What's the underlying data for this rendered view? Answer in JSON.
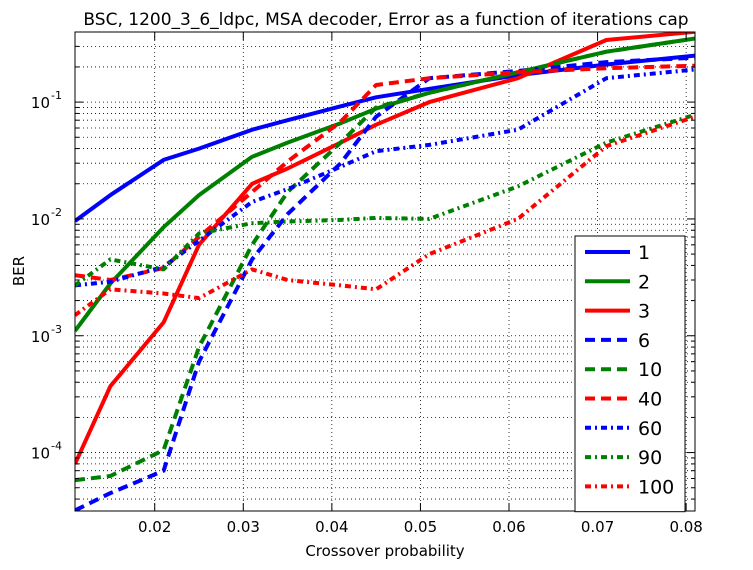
{
  "chart_data": {
    "type": "line",
    "title": "BSC, 1200_3_6_ldpc, MSA decoder, Error as a function of iterations cap",
    "xlabel": "Crossover probability",
    "ylabel": "BER",
    "xlim": [
      0.011,
      0.081
    ],
    "ylim": [
      3.162e-05,
      0.3981
    ],
    "yscale": "log",
    "grid": true,
    "legend_position": "lower-right",
    "x_ticks": [
      {
        "value": 0.02,
        "label": "0.02"
      },
      {
        "value": 0.03,
        "label": "0.03"
      },
      {
        "value": 0.04,
        "label": "0.04"
      },
      {
        "value": 0.05,
        "label": "0.05"
      },
      {
        "value": 0.06,
        "label": "0.06"
      },
      {
        "value": 0.07,
        "label": "0.07"
      },
      {
        "value": 0.08,
        "label": "0.08"
      }
    ],
    "y_ticks": [
      {
        "value": 0.0001,
        "mant": "10",
        "exp": "-4"
      },
      {
        "value": 0.001,
        "mant": "10",
        "exp": "-3"
      },
      {
        "value": 0.01,
        "mant": "10",
        "exp": "-2"
      },
      {
        "value": 0.1,
        "mant": "10",
        "exp": "-1"
      }
    ],
    "series": [
      {
        "name": "1",
        "color": "#0000ff",
        "style": "solid",
        "x": [
          0.011,
          0.015,
          0.021,
          0.025,
          0.031,
          0.035,
          0.041,
          0.045,
          0.051,
          0.061,
          0.071,
          0.081
        ],
        "y": [
          0.0096,
          0.016,
          0.032,
          0.04,
          0.058,
          0.07,
          0.092,
          0.11,
          0.13,
          0.17,
          0.21,
          0.25
        ]
      },
      {
        "name": "2",
        "color": "#008000",
        "style": "solid",
        "x": [
          0.011,
          0.015,
          0.021,
          0.025,
          0.031,
          0.035,
          0.041,
          0.045,
          0.051,
          0.061,
          0.071,
          0.081
        ],
        "y": [
          0.0011,
          0.0028,
          0.0085,
          0.016,
          0.034,
          0.045,
          0.066,
          0.088,
          0.12,
          0.18,
          0.27,
          0.35
        ]
      },
      {
        "name": "3",
        "color": "#ff0000",
        "style": "solid",
        "x": [
          0.011,
          0.015,
          0.021,
          0.025,
          0.031,
          0.035,
          0.041,
          0.045,
          0.051,
          0.061,
          0.071,
          0.081
        ],
        "y": [
          8e-05,
          0.00037,
          0.0013,
          0.006,
          0.02,
          0.027,
          0.045,
          0.064,
          0.1,
          0.16,
          0.34,
          0.4
        ]
      },
      {
        "name": "6",
        "color": "#0000ff",
        "style": "dashed",
        "x": [
          0.011,
          0.015,
          0.021,
          0.025,
          0.031,
          0.035,
          0.041,
          0.045,
          0.051,
          0.061,
          0.071,
          0.081
        ],
        "y": [
          3.2e-05,
          4.5e-05,
          7e-05,
          0.0006,
          0.0045,
          0.011,
          0.03,
          0.075,
          0.16,
          0.185,
          0.22,
          0.24
        ]
      },
      {
        "name": "10",
        "color": "#008000",
        "style": "dashed",
        "x": [
          0.011,
          0.015,
          0.021,
          0.025,
          0.031,
          0.035,
          0.041,
          0.045,
          0.051,
          0.061,
          0.071,
          0.081
        ],
        "y": [
          5.8e-05,
          6.3e-05,
          0.000105,
          0.0008,
          0.006,
          0.017,
          0.045,
          0.09,
          0.12,
          0.18,
          0.27,
          0.35
        ]
      },
      {
        "name": "40",
        "color": "#ff0000",
        "style": "dashed",
        "x": [
          0.011,
          0.015,
          0.021,
          0.025,
          0.031,
          0.035,
          0.041,
          0.045,
          0.051,
          0.061,
          0.071,
          0.081
        ],
        "y": [
          0.0033,
          0.003,
          0.0038,
          0.007,
          0.017,
          0.031,
          0.068,
          0.14,
          0.16,
          0.18,
          0.195,
          0.205
        ]
      },
      {
        "name": "60",
        "color": "#0000ff",
        "style": "dashdot",
        "x": [
          0.011,
          0.015,
          0.021,
          0.025,
          0.031,
          0.035,
          0.041,
          0.045,
          0.051,
          0.061,
          0.071,
          0.081
        ],
        "y": [
          0.0027,
          0.0029,
          0.0039,
          0.0065,
          0.014,
          0.018,
          0.028,
          0.038,
          0.043,
          0.058,
          0.16,
          0.19
        ]
      },
      {
        "name": "90",
        "color": "#008000",
        "style": "dashdot",
        "x": [
          0.011,
          0.015,
          0.021,
          0.025,
          0.031,
          0.035,
          0.041,
          0.045,
          0.051,
          0.061,
          0.071,
          0.081
        ],
        "y": [
          0.0027,
          0.0045,
          0.0037,
          0.0075,
          0.0092,
          0.0095,
          0.0098,
          0.0102,
          0.01,
          0.019,
          0.045,
          0.078
        ]
      },
      {
        "name": "100",
        "color": "#ff0000",
        "style": "dashdot",
        "x": [
          0.011,
          0.015,
          0.021,
          0.025,
          0.031,
          0.035,
          0.041,
          0.045,
          0.051,
          0.061,
          0.071,
          0.081
        ],
        "y": [
          0.0015,
          0.0025,
          0.0023,
          0.0021,
          0.0037,
          0.003,
          0.0027,
          0.0025,
          0.005,
          0.01,
          0.042,
          0.075
        ]
      }
    ]
  }
}
